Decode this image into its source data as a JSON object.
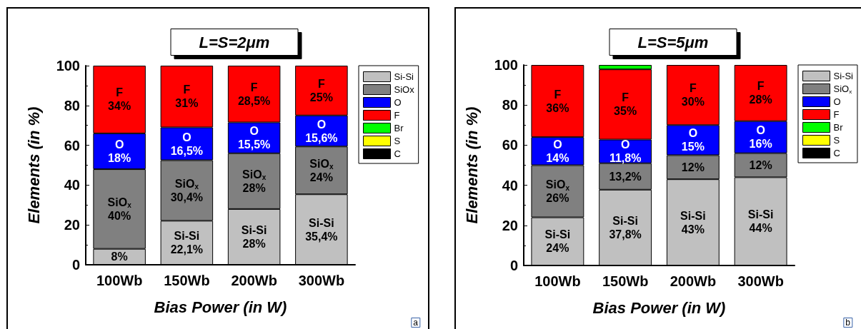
{
  "chart_data": [
    {
      "type": "bar",
      "title": "L=S=2μm",
      "xlabel": "Bias Power (in W)",
      "ylabel": "Elements (in %)",
      "categories": [
        "100Wb",
        "150Wb",
        "200Wb",
        "300Wb"
      ],
      "stacked": true,
      "ylim": [
        0,
        100
      ],
      "yticks": [
        0,
        20,
        40,
        60,
        80,
        100
      ],
      "legend": "top right",
      "annotations": [
        "a"
      ],
      "series": [
        {
          "name": "Si-Si",
          "color": "#c0c0c0",
          "values": [
            8,
            22.1,
            28,
            35.4
          ],
          "value_labels": [
            "8%",
            "Si-Si\n22,1%",
            "Si-Si\n28%",
            "Si-Si\n35,4%"
          ]
        },
        {
          "name": "SiOx",
          "color": "#808080",
          "values": [
            40,
            30.4,
            28,
            24
          ],
          "value_labels": [
            "SiO$_{x}$\n40%",
            "SiO$_{x}$\n30,4%",
            "SiO$_{x}$\n28%",
            "SiO$_{x}$\n24%"
          ]
        },
        {
          "name": "O",
          "color": "#0000ff",
          "values": [
            18,
            16.5,
            15.5,
            15.6
          ],
          "value_labels": [
            "O\n18%",
            "O\n16,5%",
            "O\n15,5%",
            "O\n15,6%"
          ]
        },
        {
          "name": "F",
          "color": "#ff0000",
          "values": [
            34,
            31,
            28.5,
            25
          ],
          "value_labels": [
            "F\n34%",
            "F\n31%",
            "F\n28,5%",
            "F\n25%"
          ]
        },
        {
          "name": "Br",
          "color": "#00ff00",
          "values": [
            0,
            0,
            0,
            0
          ]
        },
        {
          "name": "S",
          "color": "#ffff00",
          "values": [
            0,
            0,
            0,
            0
          ]
        },
        {
          "name": "C",
          "color": "#000000",
          "values": [
            0,
            0,
            0,
            0
          ]
        }
      ]
    },
    {
      "type": "bar",
      "title": "L=S=5μm",
      "xlabel": "Bias Power (in W)",
      "ylabel": "Elements (in %)",
      "categories": [
        "100Wb",
        "150Wb",
        "200Wb",
        "300Wb"
      ],
      "stacked": true,
      "ylim": [
        0,
        100
      ],
      "yticks": [
        0,
        20,
        40,
        60,
        80,
        100
      ],
      "legend": "top right",
      "annotations": [
        "b"
      ],
      "series": [
        {
          "name": "Si-Si",
          "color": "#c0c0c0",
          "values": [
            24,
            37.8,
            43,
            44
          ],
          "value_labels": [
            "Si-Si\n24%",
            "Si-Si\n37,8%",
            "Si-Si\n43%",
            "Si-Si\n44%"
          ]
        },
        {
          "name": "SiO$_{x}$",
          "color": "#808080",
          "values": [
            26,
            13.2,
            12,
            12
          ],
          "value_labels": [
            "SiO$_{x}$\n26%",
            "13,2%",
            "12%",
            "12%"
          ]
        },
        {
          "name": "O",
          "color": "#0000ff",
          "values": [
            14,
            11.8,
            15,
            16
          ],
          "value_labels": [
            "O\n14%",
            "O\n11,8%",
            "O\n15%",
            "O\n16%"
          ]
        },
        {
          "name": "F",
          "color": "#ff0000",
          "values": [
            36,
            35,
            30,
            28
          ],
          "value_labels": [
            "F\n36%",
            "F\n35%",
            "F\n30%",
            "F\n28%"
          ]
        },
        {
          "name": "Br",
          "color": "#00ff00",
          "values": [
            0,
            2.2,
            0,
            0
          ]
        },
        {
          "name": "S",
          "color": "#ffff00",
          "values": [
            0,
            0,
            0,
            0
          ]
        },
        {
          "name": "C",
          "color": "#000000",
          "values": [
            0,
            0,
            0,
            0
          ]
        }
      ]
    }
  ]
}
